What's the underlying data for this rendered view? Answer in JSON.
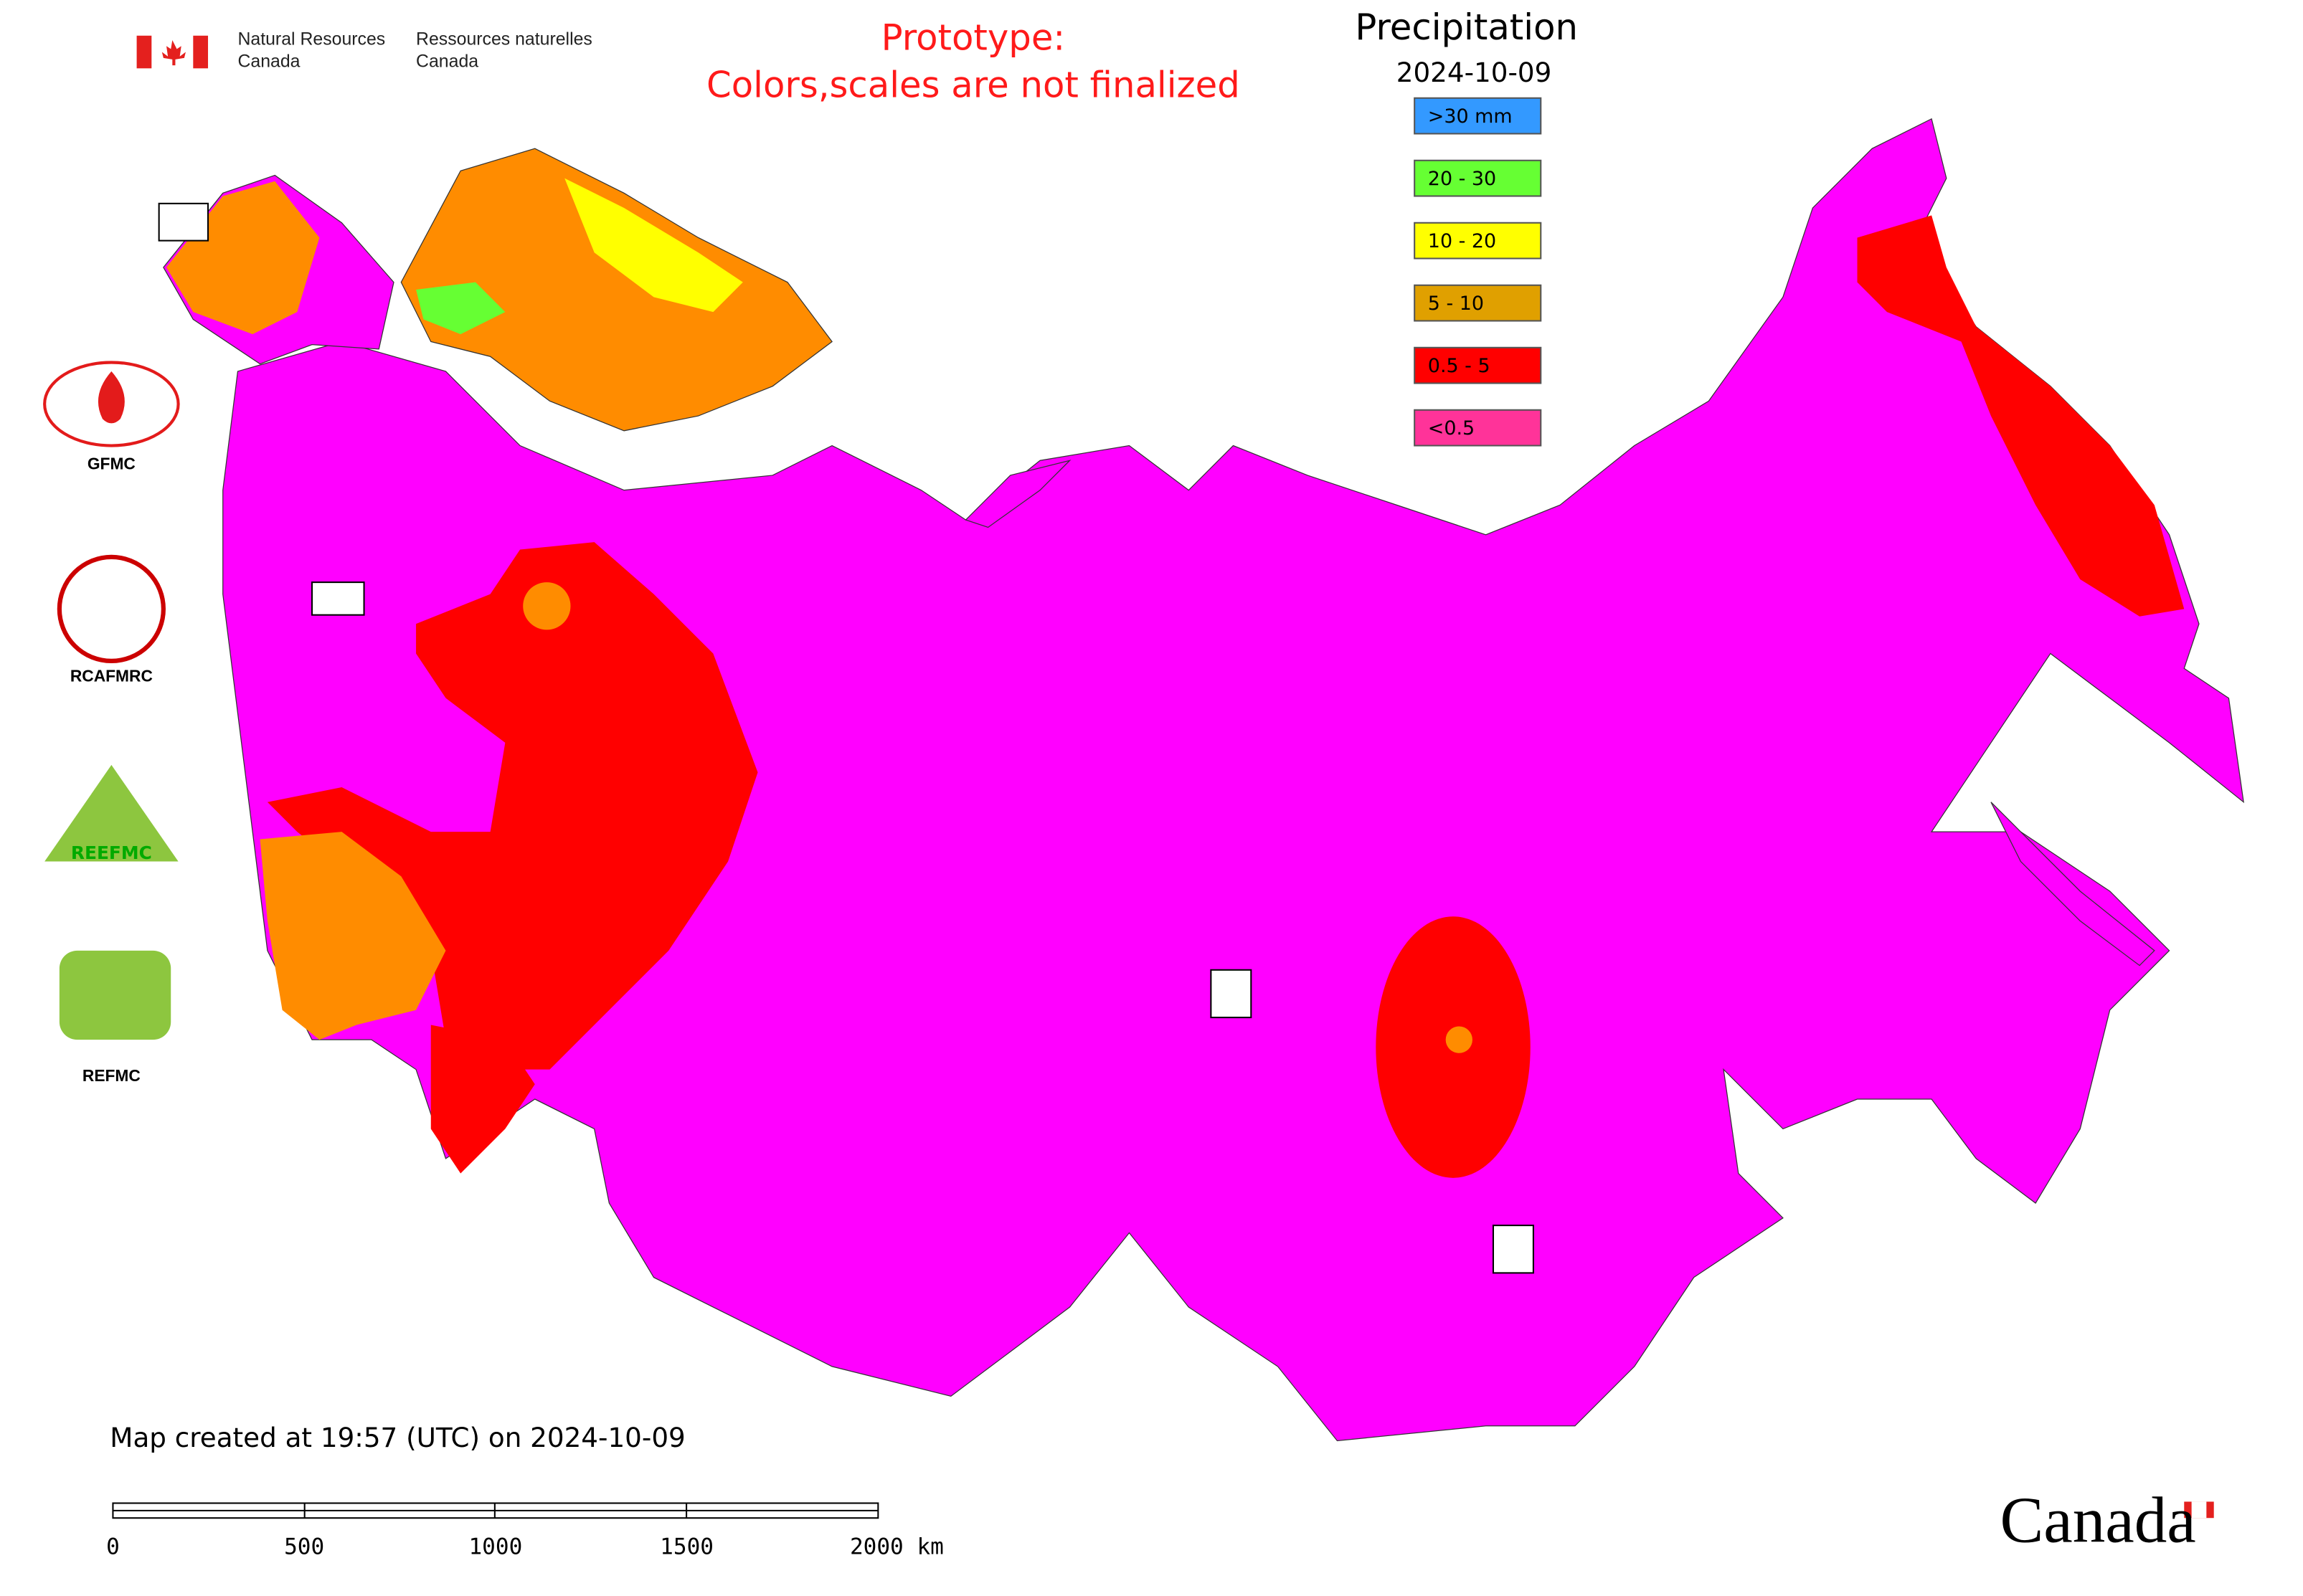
{
  "header": {
    "department_en": [
      "Natural Resources",
      "Canada"
    ],
    "department_fr": [
      "Ressources naturelles",
      "Canada"
    ]
  },
  "notice": [
    "Prototype:",
    "Colors,scales are not finalized"
  ],
  "legend": {
    "title": "Precipitation",
    "date": "2024-10-09",
    "items": [
      {
        "label": ">30 mm",
        "color": "#3399ff"
      },
      {
        "label": "20 - 30",
        "color": "#66ff33"
      },
      {
        "label": "10 - 20",
        "color": "#ffff00"
      },
      {
        "label": "5 - 10",
        "color": "#e0a000"
      },
      {
        "label": "0.5 - 5",
        "color": "#ff0000"
      },
      {
        "label": "<0.5",
        "color": "#ff3399"
      }
    ]
  },
  "logos": [
    "GFMC",
    "RCAFMRC",
    "REEFMC",
    "REFMC"
  ],
  "footer": {
    "created": "Map created at 19:57 (UTC) on 2024-10-09",
    "scale_labels": [
      "0",
      "500",
      "1000",
      "1500",
      "2000 km"
    ],
    "wordmark": "Canada"
  }
}
